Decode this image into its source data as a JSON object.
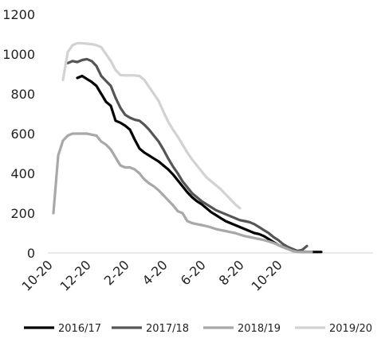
{
  "chart_data": {
    "type": "line",
    "title": "",
    "xlabel": "",
    "ylabel": "",
    "ylim": [
      0,
      1200
    ],
    "y_ticks": [
      0,
      200,
      400,
      600,
      800,
      1000,
      1200
    ],
    "x_ticks": [
      "10-20",
      "12-20",
      "2-20",
      "4-20",
      "6-20",
      "8-20",
      "10-20"
    ],
    "x_unit": "week index from 10-20 (tick every 8 weeks)",
    "grid": false,
    "legend_position": "bottom",
    "series": [
      {
        "name": "2016/17",
        "color": "#000000",
        "points": [
          [
            5,
            880
          ],
          [
            6,
            890
          ],
          [
            7,
            875
          ],
          [
            8,
            860
          ],
          [
            9,
            840
          ],
          [
            10,
            800
          ],
          [
            11,
            760
          ],
          [
            12,
            740
          ],
          [
            13,
            665
          ],
          [
            14,
            655
          ],
          [
            15,
            640
          ],
          [
            16,
            620
          ],
          [
            17,
            570
          ],
          [
            18,
            525
          ],
          [
            19,
            505
          ],
          [
            20,
            490
          ],
          [
            21,
            475
          ],
          [
            22,
            460
          ],
          [
            23,
            440
          ],
          [
            24,
            420
          ],
          [
            25,
            395
          ],
          [
            26,
            365
          ],
          [
            27,
            335
          ],
          [
            28,
            305
          ],
          [
            29,
            280
          ],
          [
            30,
            260
          ],
          [
            31,
            245
          ],
          [
            32,
            225
          ],
          [
            33,
            205
          ],
          [
            34,
            190
          ],
          [
            35,
            175
          ],
          [
            36,
            160
          ],
          [
            37,
            150
          ],
          [
            38,
            140
          ],
          [
            39,
            130
          ],
          [
            40,
            120
          ],
          [
            41,
            110
          ],
          [
            42,
            100
          ],
          [
            43,
            95
          ],
          [
            44,
            85
          ],
          [
            45,
            70
          ],
          [
            46,
            55
          ],
          [
            47,
            40
          ],
          [
            48,
            30
          ],
          [
            49,
            20
          ],
          [
            50,
            12
          ],
          [
            51,
            8
          ],
          [
            52,
            5
          ],
          [
            53,
            5
          ],
          [
            54,
            5
          ],
          [
            55,
            5
          ],
          [
            56,
            5
          ]
        ]
      },
      {
        "name": "2017/18",
        "color": "#555555",
        "points": [
          [
            3,
            955
          ],
          [
            4,
            965
          ],
          [
            5,
            960
          ],
          [
            6,
            970
          ],
          [
            7,
            975
          ],
          [
            8,
            965
          ],
          [
            9,
            940
          ],
          [
            10,
            890
          ],
          [
            11,
            865
          ],
          [
            12,
            840
          ],
          [
            13,
            780
          ],
          [
            14,
            730
          ],
          [
            15,
            695
          ],
          [
            16,
            680
          ],
          [
            17,
            670
          ],
          [
            18,
            665
          ],
          [
            19,
            645
          ],
          [
            20,
            620
          ],
          [
            21,
            590
          ],
          [
            22,
            560
          ],
          [
            23,
            520
          ],
          [
            24,
            475
          ],
          [
            25,
            435
          ],
          [
            26,
            400
          ],
          [
            27,
            360
          ],
          [
            28,
            330
          ],
          [
            29,
            300
          ],
          [
            30,
            280
          ],
          [
            31,
            260
          ],
          [
            32,
            245
          ],
          [
            33,
            230
          ],
          [
            34,
            215
          ],
          [
            35,
            205
          ],
          [
            36,
            195
          ],
          [
            37,
            185
          ],
          [
            38,
            175
          ],
          [
            39,
            165
          ],
          [
            40,
            160
          ],
          [
            41,
            155
          ],
          [
            42,
            145
          ],
          [
            43,
            130
          ],
          [
            44,
            115
          ],
          [
            45,
            100
          ],
          [
            46,
            80
          ],
          [
            47,
            65
          ],
          [
            48,
            45
          ],
          [
            49,
            30
          ],
          [
            50,
            20
          ],
          [
            51,
            10
          ],
          [
            52,
            15
          ],
          [
            53,
            35
          ]
        ]
      },
      {
        "name": "2018/19",
        "color": "#a8a8a8",
        "points": [
          [
            0,
            200
          ],
          [
            1,
            490
          ],
          [
            2,
            565
          ],
          [
            3,
            590
          ],
          [
            4,
            600
          ],
          [
            5,
            600
          ],
          [
            6,
            600
          ],
          [
            7,
            600
          ],
          [
            8,
            595
          ],
          [
            9,
            590
          ],
          [
            10,
            560
          ],
          [
            11,
            545
          ],
          [
            12,
            520
          ],
          [
            13,
            480
          ],
          [
            14,
            440
          ],
          [
            15,
            430
          ],
          [
            16,
            430
          ],
          [
            17,
            420
          ],
          [
            18,
            400
          ],
          [
            19,
            370
          ],
          [
            20,
            350
          ],
          [
            21,
            335
          ],
          [
            22,
            315
          ],
          [
            23,
            290
          ],
          [
            24,
            265
          ],
          [
            25,
            240
          ],
          [
            26,
            210
          ],
          [
            27,
            200
          ],
          [
            28,
            160
          ],
          [
            29,
            150
          ],
          [
            30,
            145
          ],
          [
            31,
            140
          ],
          [
            32,
            135
          ],
          [
            33,
            128
          ],
          [
            34,
            120
          ],
          [
            35,
            115
          ],
          [
            36,
            110
          ],
          [
            37,
            105
          ],
          [
            38,
            100
          ],
          [
            39,
            92
          ],
          [
            40,
            85
          ],
          [
            41,
            80
          ],
          [
            42,
            75
          ],
          [
            43,
            70
          ],
          [
            44,
            65
          ],
          [
            45,
            58
          ],
          [
            46,
            50
          ],
          [
            47,
            40
          ],
          [
            48,
            30
          ],
          [
            49,
            20
          ],
          [
            50,
            10
          ],
          [
            51,
            5
          ],
          [
            52,
            5
          ],
          [
            53,
            5
          ],
          [
            54,
            5
          ]
        ]
      },
      {
        "name": "2019/20",
        "color": "#d2d2d2",
        "points": [
          [
            2,
            870
          ],
          [
            3,
            1010
          ],
          [
            4,
            1045
          ],
          [
            5,
            1055
          ],
          [
            6,
            1055
          ],
          [
            7,
            1052
          ],
          [
            8,
            1050
          ],
          [
            9,
            1045
          ],
          [
            10,
            1035
          ],
          [
            11,
            1000
          ],
          [
            12,
            965
          ],
          [
            13,
            920
          ],
          [
            14,
            895
          ],
          [
            15,
            893
          ],
          [
            16,
            893
          ],
          [
            17,
            893
          ],
          [
            18,
            890
          ],
          [
            19,
            870
          ],
          [
            20,
            835
          ],
          [
            21,
            800
          ],
          [
            22,
            765
          ],
          [
            23,
            710
          ],
          [
            24,
            660
          ],
          [
            25,
            620
          ],
          [
            26,
            585
          ],
          [
            27,
            545
          ],
          [
            28,
            505
          ],
          [
            29,
            470
          ],
          [
            30,
            440
          ],
          [
            31,
            410
          ],
          [
            32,
            380
          ],
          [
            33,
            360
          ],
          [
            34,
            340
          ],
          [
            35,
            320
          ],
          [
            36,
            295
          ],
          [
            37,
            270
          ],
          [
            38,
            245
          ],
          [
            39,
            225
          ]
        ]
      }
    ]
  }
}
